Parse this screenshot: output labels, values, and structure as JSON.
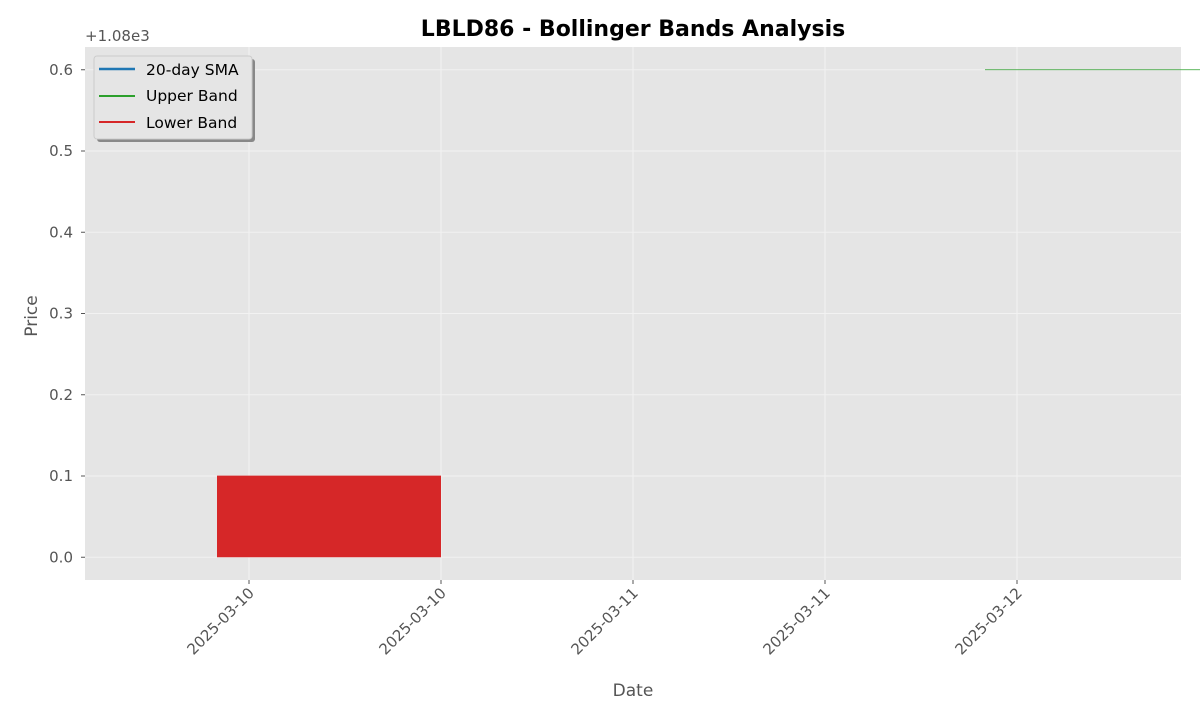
{
  "chart_data": {
    "type": "line",
    "title": "LBLD86 - Bollinger Bands Analysis",
    "xlabel": "Date",
    "ylabel": "Price",
    "y_offset_label": "+1.08e3",
    "y_offset": 1080,
    "ylim": [
      -0.028,
      0.628
    ],
    "y_ticks": [
      0.0,
      0.1,
      0.2,
      0.3,
      0.4,
      0.5,
      0.6
    ],
    "y_tick_labels": [
      "0.0",
      "0.1",
      "0.2",
      "0.3",
      "0.4",
      "0.5",
      "0.6"
    ],
    "x_tick_labels": [
      "2025-03-10",
      "2025-03-10",
      "2025-03-11",
      "2025-03-11",
      "2025-03-12"
    ],
    "grid": true,
    "legend_position": "upper-left",
    "series": [
      {
        "name": "20-day SMA",
        "color": "#1f77b4",
        "x": [],
        "values": []
      },
      {
        "name": "Upper Band",
        "color": "#2ca02c",
        "x": [
          "2025-03-11 22:00",
          "2025-03-12 12:00"
        ],
        "values": [
          0.6,
          0.6
        ]
      },
      {
        "name": "Lower Band",
        "color": "#d62728",
        "x": [
          "2025-03-09 22:00",
          "2025-03-10 12:00"
        ],
        "values": [
          0.1,
          0.1
        ]
      }
    ],
    "band_fill": {
      "color": "#d62728",
      "x": [
        "2025-03-09 22:00",
        "2025-03-10 12:00"
      ],
      "from": 0.0,
      "to": 0.1
    }
  }
}
